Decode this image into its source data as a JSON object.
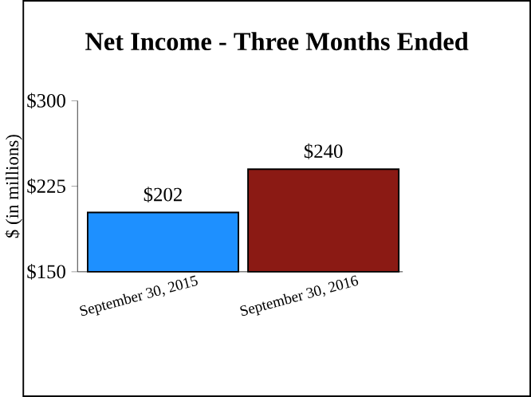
{
  "chart_data": {
    "type": "bar",
    "title": "Net Income - Three Months Ended",
    "ylabel": "$ (in millions)",
    "categories": [
      "September 30, 2015",
      "September 30, 2016"
    ],
    "values": [
      202,
      240
    ],
    "value_labels": [
      "$202",
      "$240"
    ],
    "colors": [
      "#1e90ff",
      "#8b1a14"
    ],
    "ylim": [
      150,
      300
    ],
    "yticks": [
      {
        "value": 150,
        "label": "$150"
      },
      {
        "value": 225,
        "label": "$225"
      },
      {
        "value": 300,
        "label": "$300"
      }
    ],
    "grid": false
  }
}
